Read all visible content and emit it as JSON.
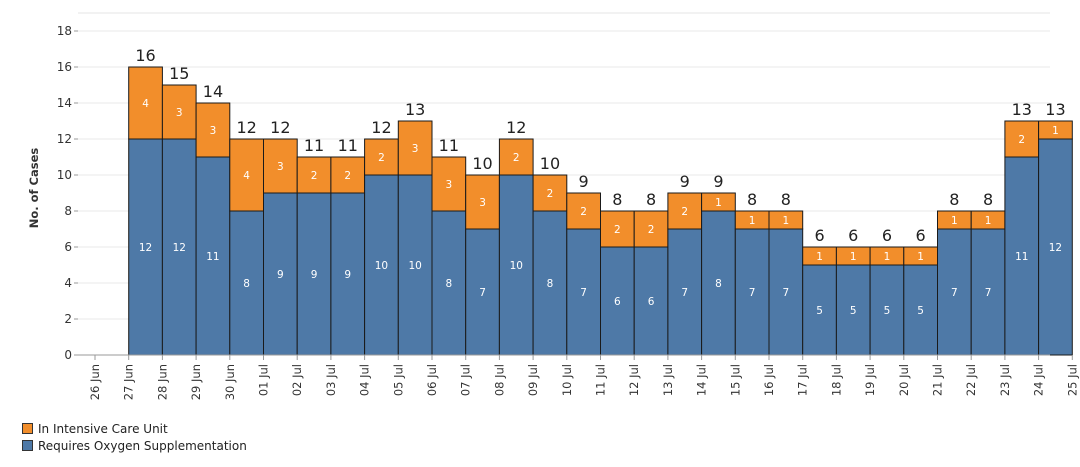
{
  "chart_data": {
    "type": "bar",
    "stacked": true,
    "ylabel": "No. of Cases",
    "ylim": [
      0,
      18
    ],
    "yticks": [
      0,
      2,
      4,
      6,
      8,
      10,
      12,
      14,
      16,
      18
    ],
    "x_tick_labels": [
      "26 Jun",
      "27 Jun",
      "28 Jun",
      "29 Jun",
      "30 Jun",
      "01 Jul",
      "02 Jul",
      "03 Jul",
      "04 Jul",
      "05 Jul",
      "06 Jul",
      "07 Jul",
      "08 Jul",
      "09 Jul",
      "10 Jul",
      "11 Jul",
      "12 Jul",
      "13 Jul",
      "14 Jul",
      "15 Jul",
      "16 Jul",
      "17 Jul",
      "18 Jul",
      "19 Jul",
      "20 Jul",
      "21 Jul",
      "22 Jul",
      "23 Jul",
      "24 Jul",
      "25 Jul"
    ],
    "categories": [
      "27 Jun",
      "28 Jun",
      "29 Jun",
      "30 Jun",
      "01 Jul",
      "02 Jul",
      "03 Jul",
      "04 Jul",
      "05 Jul",
      "06 Jul",
      "07 Jul",
      "08 Jul",
      "09 Jul",
      "10 Jul",
      "11 Jul",
      "12 Jul",
      "13 Jul",
      "14 Jul",
      "15 Jul",
      "16 Jul",
      "17 Jul",
      "18 Jul",
      "19 Jul",
      "20 Jul",
      "21 Jul",
      "22 Jul",
      "23 Jul",
      "24 Jul"
    ],
    "series": [
      {
        "name": "Requires Oxygen Supplementation",
        "color": "#4e79a7",
        "values": [
          12,
          12,
          11,
          8,
          9,
          9,
          9,
          10,
          10,
          8,
          7,
          10,
          8,
          7,
          6,
          6,
          7,
          8,
          7,
          7,
          5,
          5,
          5,
          5,
          7,
          7,
          11,
          12
        ]
      },
      {
        "name": "In Intensive Care Unit",
        "color": "#f28e2b",
        "values": [
          4,
          3,
          3,
          4,
          3,
          2,
          2,
          2,
          3,
          3,
          3,
          2,
          2,
          2,
          2,
          2,
          2,
          1,
          1,
          1,
          1,
          1,
          1,
          1,
          1,
          1,
          2,
          1
        ]
      }
    ],
    "totals": [
      16,
      15,
      14,
      12,
      12,
      11,
      11,
      12,
      13,
      11,
      10,
      12,
      10,
      9,
      8,
      8,
      9,
      9,
      8,
      8,
      6,
      6,
      6,
      6,
      8,
      8,
      13,
      13
    ],
    "grid": "horizontal",
    "legend": "bottom-left"
  },
  "legend": {
    "items": [
      {
        "label": "In Intensive Care Unit",
        "color": "#f28e2b"
      },
      {
        "label": "Requires Oxygen Supplementation",
        "color": "#4e79a7"
      }
    ]
  }
}
